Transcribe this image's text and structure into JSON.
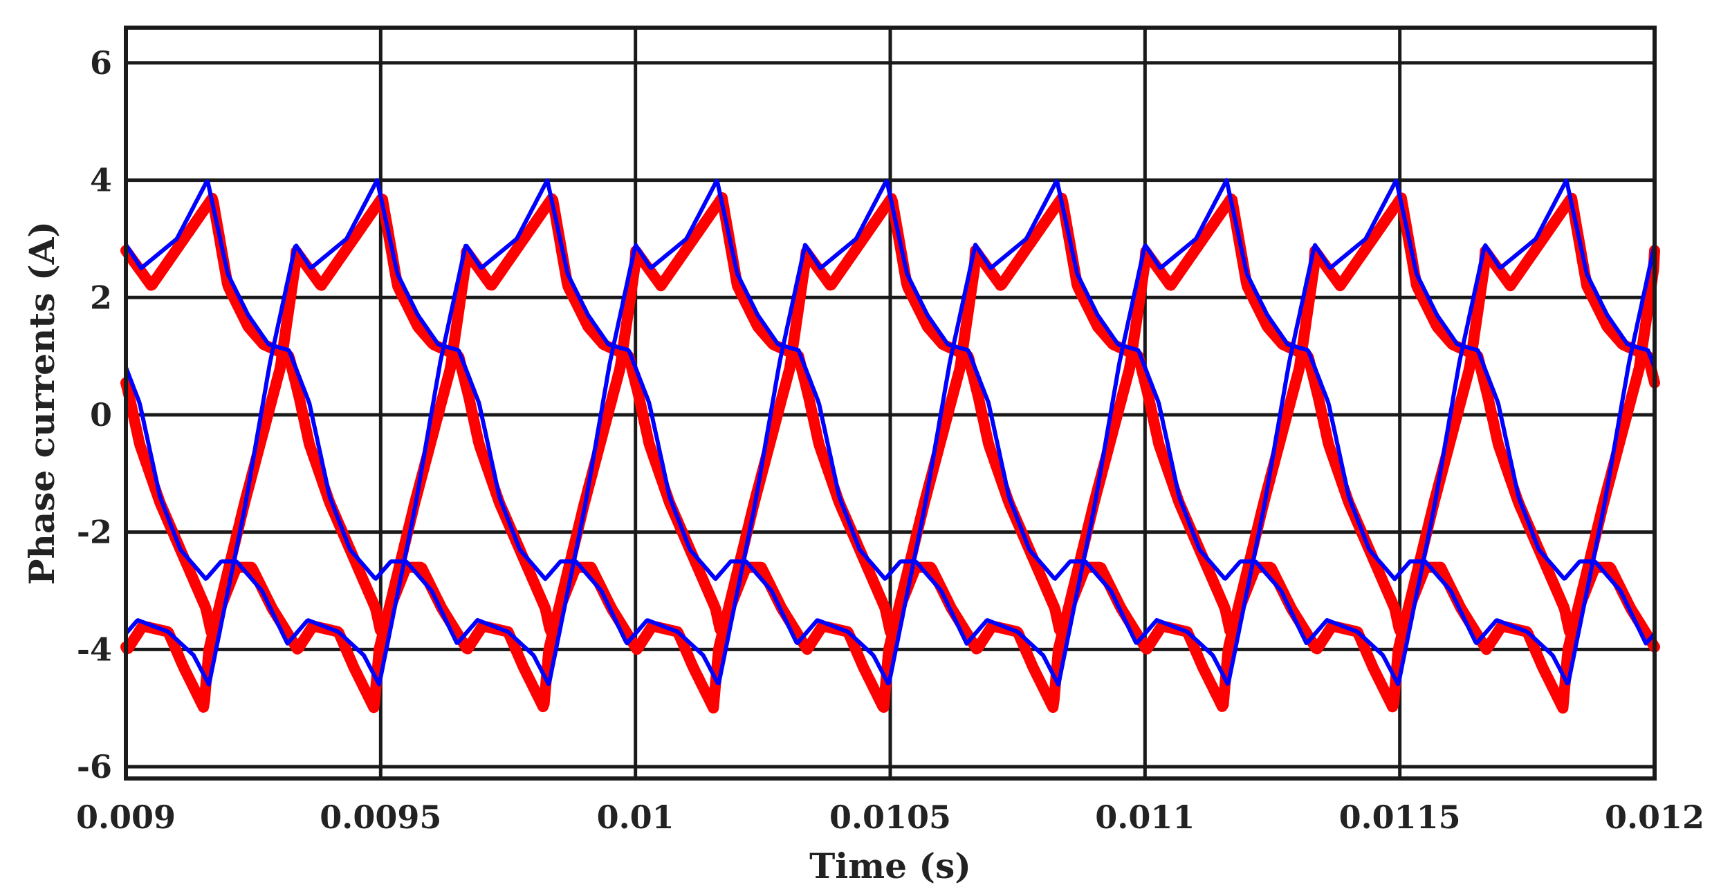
{
  "chart_data": {
    "type": "line",
    "title": "",
    "xlabel": "Time (s)",
    "ylabel": "Phase currents (A)",
    "xlim": [
      0.009,
      0.012
    ],
    "ylim": [
      -6.2,
      6.6
    ],
    "x_ticks": [
      0.009,
      0.0095,
      0.01,
      0.0105,
      0.011,
      0.0115,
      0.012
    ],
    "x_tick_labels": [
      "0.009",
      "0.0095",
      "0.01",
      "0.0105",
      "0.011",
      "0.0115",
      "0.012"
    ],
    "y_ticks": [
      -6,
      -4,
      -2,
      0,
      2,
      4,
      6
    ],
    "y_tick_labels": [
      "-6",
      "-4",
      "-2",
      "0",
      "2",
      "4",
      "6"
    ],
    "grid": true,
    "legend": "none",
    "period_s": 0.001,
    "series": [
      {
        "color": "#ff0000",
        "line": "thick",
        "phase_shift_s": 0,
        "x": [
          0.009,
          0.00905,
          0.00917,
          0.0092,
          0.00924,
          0.00927,
          0.00932,
          0.00934,
          0.00936,
          0.0094,
          0.00945,
          0.00949,
          0.0095,
          0.00955,
          0.00958,
          0.00962,
          0.00967,
          0.0097,
          0.00975,
          0.00978,
          0.00982,
          0.00983,
          0.0099,
          0.00997,
          0.01
        ],
        "y": [
          2.8,
          2.2,
          3.7,
          2.2,
          1.5,
          1.2,
          1.0,
          0.3,
          -0.5,
          -1.5,
          -2.5,
          -3.3,
          -3.7,
          -2.6,
          -2.6,
          -3.3,
          -4.0,
          -3.6,
          -3.7,
          -4.3,
          -5.0,
          -4.0,
          -1.5,
          0.8,
          2.6
        ]
      },
      {
        "color": "#ff0000",
        "line": "thick",
        "phase_shift_s": 0.000333,
        "x": [
          0.009,
          0.00905,
          0.00917,
          0.0092,
          0.00924,
          0.00927,
          0.00932,
          0.00934,
          0.00936,
          0.0094,
          0.00945,
          0.00949,
          0.0095,
          0.00955,
          0.00958,
          0.00962,
          0.00967,
          0.0097,
          0.00975,
          0.00978,
          0.00982,
          0.00983,
          0.0099,
          0.00997,
          0.01
        ],
        "y": [
          2.8,
          2.2,
          3.7,
          2.2,
          1.5,
          1.2,
          1.0,
          0.3,
          -0.5,
          -1.5,
          -2.5,
          -3.3,
          -3.7,
          -2.6,
          -2.6,
          -3.3,
          -4.0,
          -3.6,
          -3.7,
          -4.3,
          -5.0,
          -4.0,
          -1.5,
          0.8,
          2.6
        ]
      },
      {
        "color": "#ff0000",
        "line": "thick",
        "phase_shift_s": 0.000667,
        "x": [
          0.009,
          0.00905,
          0.00917,
          0.0092,
          0.00924,
          0.00927,
          0.00932,
          0.00934,
          0.00936,
          0.0094,
          0.00945,
          0.00949,
          0.0095,
          0.00955,
          0.00958,
          0.00962,
          0.00967,
          0.0097,
          0.00975,
          0.00978,
          0.00982,
          0.00983,
          0.0099,
          0.00997,
          0.01
        ],
        "y": [
          2.8,
          2.2,
          3.7,
          2.2,
          1.5,
          1.2,
          1.0,
          0.3,
          -0.5,
          -1.5,
          -2.5,
          -3.3,
          -3.7,
          -2.6,
          -2.6,
          -3.3,
          -4.0,
          -3.6,
          -3.7,
          -4.3,
          -5.0,
          -4.0,
          -1.5,
          0.8,
          2.6
        ]
      },
      {
        "color": "#0000ff",
        "line": "thin",
        "phase_shift_s": 0,
        "x": [
          0.009,
          0.00903,
          0.0091,
          0.00916,
          0.0092,
          0.00924,
          0.00928,
          0.00932,
          0.00936,
          0.0094,
          0.00944,
          0.00949,
          0.00952,
          0.00955,
          0.0096,
          0.00965,
          0.00969,
          0.00975,
          0.0098,
          0.00983,
          0.0099,
          0.00995,
          0.01
        ],
        "y": [
          2.9,
          2.5,
          3.0,
          4.0,
          2.4,
          1.7,
          1.2,
          1.1,
          0.2,
          -1.4,
          -2.3,
          -2.8,
          -2.5,
          -2.5,
          -3.0,
          -3.9,
          -3.5,
          -3.7,
          -4.1,
          -4.6,
          -1.6,
          0.9,
          2.9
        ]
      },
      {
        "color": "#0000ff",
        "line": "thin",
        "phase_shift_s": 0.000333,
        "x": [
          0.009,
          0.00903,
          0.0091,
          0.00916,
          0.0092,
          0.00924,
          0.00928,
          0.00932,
          0.00936,
          0.0094,
          0.00944,
          0.00949,
          0.00952,
          0.00955,
          0.0096,
          0.00965,
          0.00969,
          0.00975,
          0.0098,
          0.00983,
          0.0099,
          0.00995,
          0.01
        ],
        "y": [
          2.9,
          2.5,
          3.0,
          4.0,
          2.4,
          1.7,
          1.2,
          1.1,
          0.2,
          -1.4,
          -2.3,
          -2.8,
          -2.5,
          -2.5,
          -3.0,
          -3.9,
          -3.5,
          -3.7,
          -4.1,
          -4.6,
          -1.6,
          0.9,
          2.9
        ]
      },
      {
        "color": "#0000ff",
        "line": "thin",
        "phase_shift_s": 0.000667,
        "x": [
          0.009,
          0.00903,
          0.0091,
          0.00916,
          0.0092,
          0.00924,
          0.00928,
          0.00932,
          0.00936,
          0.0094,
          0.00944,
          0.00949,
          0.00952,
          0.00955,
          0.0096,
          0.00965,
          0.00969,
          0.00975,
          0.0098,
          0.00983,
          0.0099,
          0.00995,
          0.01
        ],
        "y": [
          2.9,
          2.5,
          3.0,
          4.0,
          2.4,
          1.7,
          1.2,
          1.1,
          0.2,
          -1.4,
          -2.3,
          -2.8,
          -2.5,
          -2.5,
          -3.0,
          -3.9,
          -3.5,
          -3.7,
          -4.1,
          -4.6,
          -1.6,
          0.9,
          2.9
        ]
      }
    ]
  }
}
